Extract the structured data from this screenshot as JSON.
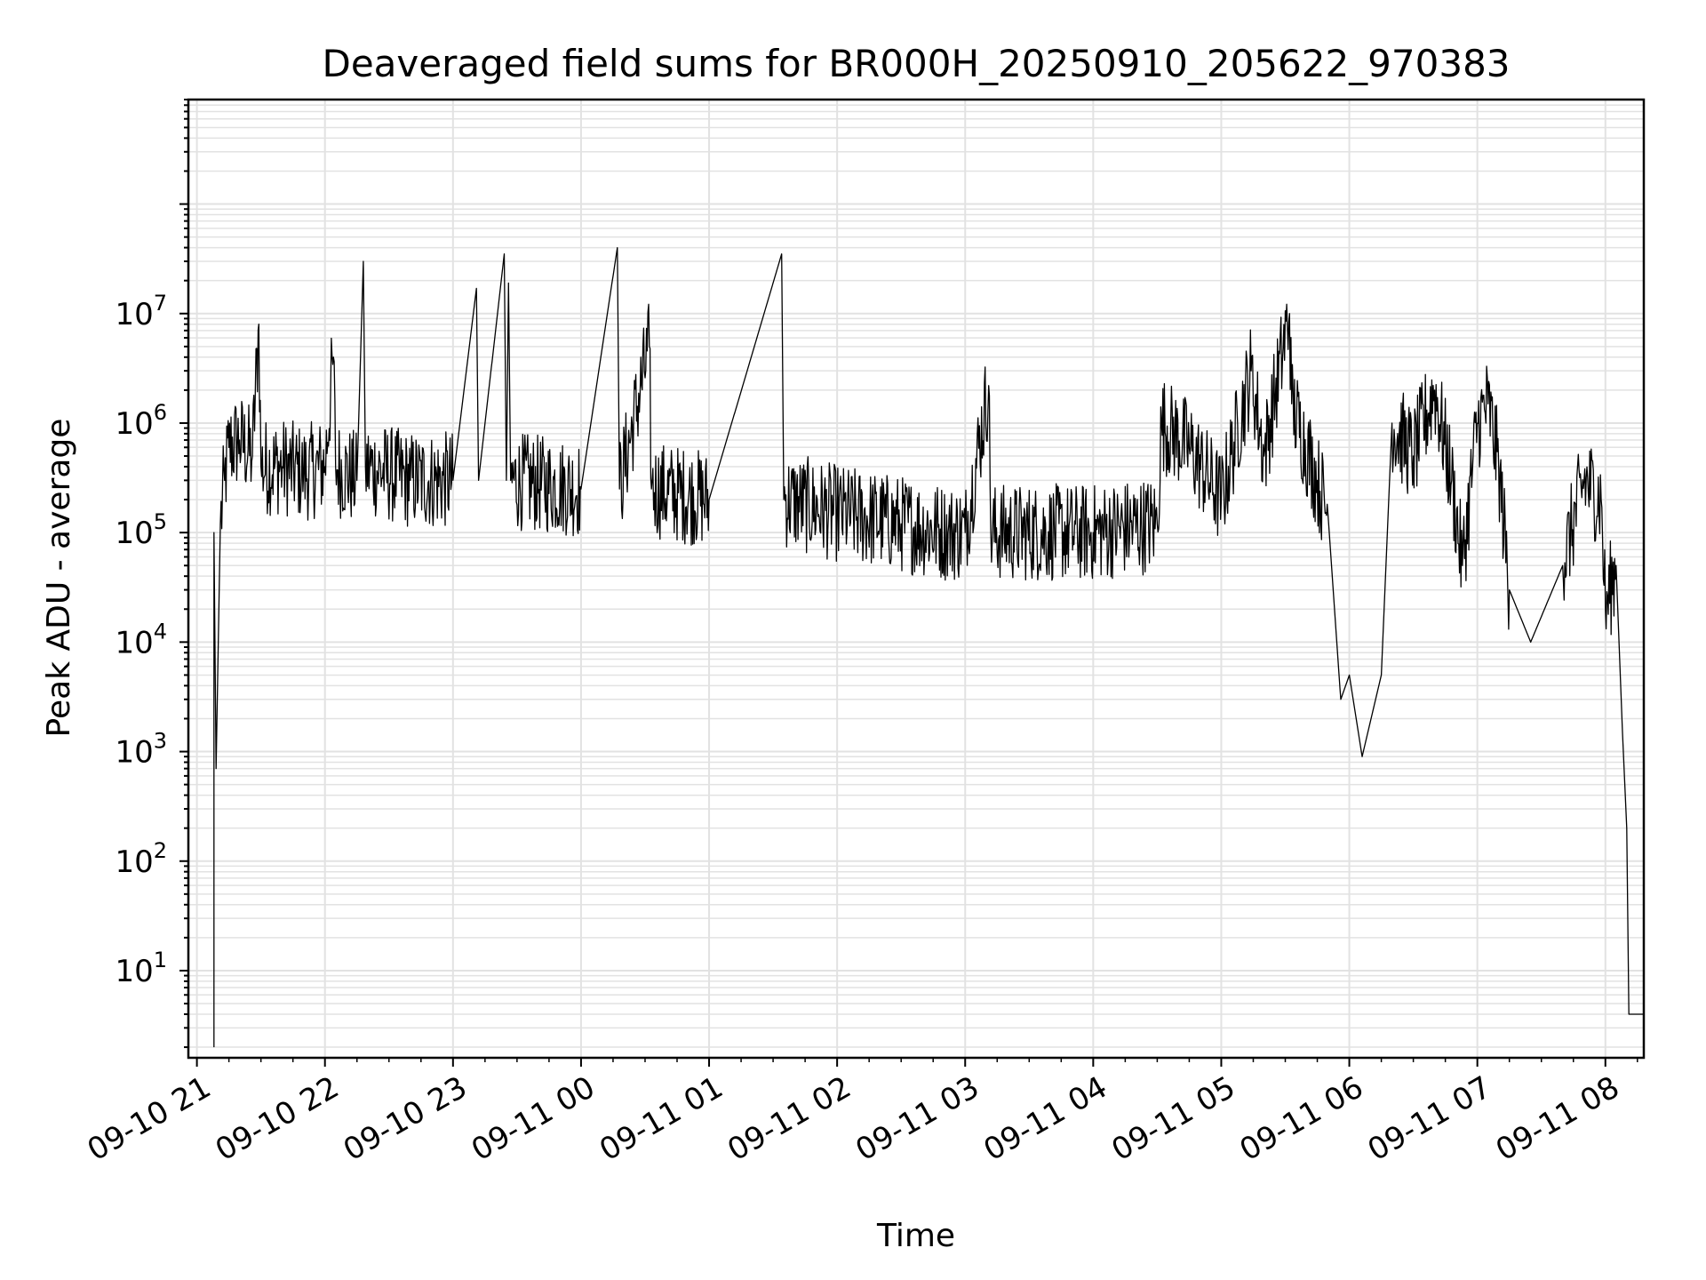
{
  "chart_data": {
    "type": "line",
    "title": "Deaveraged field sums for BR000H_20250910_205622_970383",
    "xlabel": "Time",
    "ylabel": "Peak ADU - average",
    "yscale": "log",
    "ylim": [
      1.6,
      900000000
    ],
    "xlim": [
      "2025-09-10 20:56",
      "2025-09-11 08:18"
    ],
    "x_ticks": [
      "09-10 21",
      "09-10 22",
      "09-10 23",
      "09-11 00",
      "09-11 01",
      "09-11 02",
      "09-11 03",
      "09-11 04",
      "09-11 05",
      "09-11 06",
      "09-11 07",
      "09-11 08"
    ],
    "y_ticks": [
      {
        "base": "10",
        "exp": "1",
        "value": 10
      },
      {
        "base": "10",
        "exp": "2",
        "value": 100
      },
      {
        "base": "10",
        "exp": "3",
        "value": 1000
      },
      {
        "base": "10",
        "exp": "4",
        "value": 10000
      },
      {
        "base": "10",
        "exp": "5",
        "value": 100000
      },
      {
        "base": "10",
        "exp": "6",
        "value": 1000000
      },
      {
        "base": "10",
        "exp": "7",
        "value": 10000000
      }
    ],
    "grid": true,
    "line_color": "#000000",
    "grid_color": "#e2e2e2",
    "series": [
      {
        "points": [
          [
            "2025-09-10 21:08",
            2
          ],
          [
            "2025-09-10 21:08",
            100000.0
          ],
          [
            "2025-09-10 21:09",
            700
          ],
          [
            "2025-09-10 21:11",
            120000.0
          ],
          [
            "2025-09-10 21:13",
            300000.0
          ],
          [
            "2025-09-10 21:15",
            600000.0
          ],
          [
            "2025-09-10 21:20",
            700000.0
          ],
          [
            "2025-09-10 21:26",
            500000.0
          ],
          [
            "2025-09-10 21:29",
            8000000.0
          ],
          [
            "2025-09-10 21:30",
            400000.0
          ],
          [
            "2025-09-10 21:40",
            400000.0
          ],
          [
            "2025-09-10 21:50",
            350000.0
          ],
          [
            "2025-09-10 22:00",
            400000.0
          ],
          [
            "2025-09-10 22:04",
            4000000.0
          ],
          [
            "2025-09-10 22:05",
            400000.0
          ],
          [
            "2025-09-10 22:15",
            300000.0
          ],
          [
            "2025-09-10 22:18",
            30000000.0
          ],
          [
            "2025-09-10 22:19",
            400000.0
          ],
          [
            "2025-09-10 22:40",
            300000.0
          ],
          [
            "2025-09-10 23:00",
            300000.0
          ],
          [
            "2025-09-10 23:11",
            17000000.0
          ],
          [
            "2025-09-10 23:12",
            300000.0
          ],
          [
            "2025-09-10 23:24",
            35000000.0
          ],
          [
            "2025-09-10 23:25",
            300000.0
          ],
          [
            "2025-09-10 23:26",
            19000000.0
          ],
          [
            "2025-09-10 23:27",
            300000.0
          ],
          [
            "2025-09-11 00:00",
            250000.0
          ],
          [
            "2025-09-11 00:17",
            40000000.0
          ],
          [
            "2025-09-11 00:18",
            250000.0
          ],
          [
            "2025-09-11 00:32",
            5000000.0
          ],
          [
            "2025-09-11 00:33",
            250000.0
          ],
          [
            "2025-09-11 01:00",
            200000.0
          ],
          [
            "2025-09-11 01:34",
            35000000.0
          ],
          [
            "2025-09-11 01:35",
            200000.0
          ],
          [
            "2025-09-11 02:00",
            150000.0
          ],
          [
            "2025-09-11 02:30",
            120000.0
          ],
          [
            "2025-09-11 02:52",
            100000.0
          ],
          [
            "2025-09-11 03:00",
            100000.0
          ],
          [
            "2025-09-11 03:11",
            2200000.0
          ],
          [
            "2025-09-11 03:12",
            100000.0
          ],
          [
            "2025-09-11 04:00",
            100000.0
          ],
          [
            "2025-09-11 04:30",
            120000.0
          ],
          [
            "2025-09-11 04:32",
            1000000.0
          ],
          [
            "2025-09-11 04:45",
            600000.0
          ],
          [
            "2025-09-11 05:00",
            200000.0
          ],
          [
            "2025-09-11 05:14",
            3000000.0
          ],
          [
            "2025-09-11 05:20",
            500000.0
          ],
          [
            "2025-09-11 05:32",
            10000000.0
          ],
          [
            "2025-09-11 05:33",
            1500000.0
          ],
          [
            "2025-09-11 05:45",
            300000.0
          ],
          [
            "2025-09-11 05:50",
            150000.0
          ],
          [
            "2025-09-11 05:56",
            3000.0
          ],
          [
            "2025-09-11 06:00",
            5000.0
          ],
          [
            "2025-09-11 06:06",
            900
          ],
          [
            "2025-09-11 06:15",
            5000.0
          ],
          [
            "2025-09-11 06:20",
            1000000.0
          ],
          [
            "2025-09-11 06:30",
            500000.0
          ],
          [
            "2025-09-11 06:40",
            2000000.0
          ],
          [
            "2025-09-11 06:48",
            300000.0
          ],
          [
            "2025-09-11 06:53",
            50000.0
          ],
          [
            "2025-09-11 07:00",
            1000000.0
          ],
          [
            "2025-09-11 07:05",
            1500000.0
          ],
          [
            "2025-09-11 07:10",
            400000.0
          ],
          [
            "2025-09-11 07:15",
            30000.0
          ],
          [
            "2025-09-11 07:25",
            10000.0
          ],
          [
            "2025-09-11 07:40",
            50000.0
          ],
          [
            "2025-09-11 07:50",
            300000.0
          ],
          [
            "2025-09-11 07:58",
            200000.0
          ],
          [
            "2025-09-11 08:00",
            20000.0
          ],
          [
            "2025-09-11 08:05",
            50000.0
          ],
          [
            "2025-09-11 08:08",
            1500.0
          ],
          [
            "2025-09-11 08:10",
            200
          ],
          [
            "2025-09-11 08:11",
            4
          ],
          [
            "2025-09-11 08:18",
            4
          ]
        ]
      }
    ]
  }
}
